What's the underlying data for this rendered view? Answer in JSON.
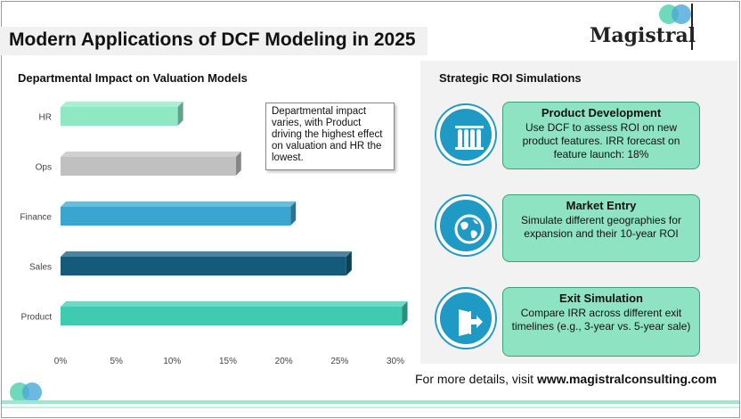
{
  "header": {
    "title": "Modern Applications of DCF Modeling in 2025",
    "brand": "Magistral"
  },
  "colors": {
    "accent_teal": "#3ecbb0",
    "accent_blue": "#1f9ac4",
    "card_bg": "#8ee3c2"
  },
  "left_panel": {
    "title": "Departmental Impact on Valuation Models",
    "callout": "Departmental impact varies, with Product driving the highest effect on valuation and HR the lowest."
  },
  "chart_data": {
    "type": "bar",
    "orientation": "horizontal",
    "categories": [
      "HR",
      "Ops",
      "Finance",
      "Sales",
      "Product"
    ],
    "values": [
      10.5,
      15.7,
      20.6,
      25.6,
      30.6
    ],
    "colors": [
      "#8ee8c4",
      "#c0c0c0",
      "#3aa6cf",
      "#155a7a",
      "#3ecbb0"
    ],
    "xticks": [
      "0%",
      "5%",
      "10%",
      "15%",
      "20%",
      "25%",
      "30%"
    ],
    "xlim": [
      0,
      30
    ],
    "grid": false
  },
  "right_panel": {
    "title": "Strategic ROI Simulations",
    "cards": [
      {
        "title": "Product Development",
        "body": "Use DCF to assess ROI on new product features. IRR forecast on feature launch: 18%",
        "icon": "test-tubes-icon"
      },
      {
        "title": "Market Entry",
        "body": "Simulate different geographies for expansion and their 10-year ROI",
        "icon": "globe-icon"
      },
      {
        "title": "Exit Simulation",
        "body": "Compare IRR across different exit timelines (e.g., 3-year vs. 5-year sale)",
        "icon": "exit-door-icon"
      }
    ]
  },
  "footer": {
    "prefix": "For more details, visit ",
    "url": "www.magistralconsulting.com"
  }
}
